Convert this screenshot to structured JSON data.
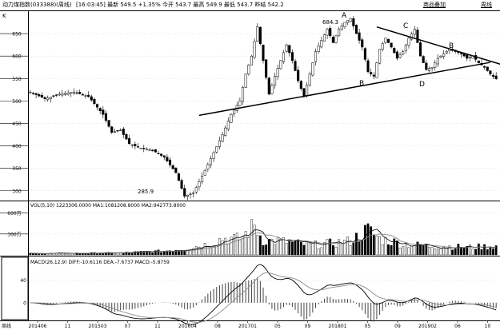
{
  "header": {
    "title": "动力煤指数(033388)(周线)",
    "info": "[16:03:45]  最新 549.5 +1.35%  今开 543.7  最高 549.9  最低 543.7  昨结 542.2",
    "btn_overlay": "商品叠加",
    "btn_period": "周线"
  },
  "main": {
    "corner_label": "K",
    "annotations": [
      {
        "text": "A"
      },
      {
        "text": "B"
      },
      {
        "text": "C"
      },
      {
        "text": "D"
      },
      {
        "text": "B"
      },
      {
        "text": "684.3"
      },
      {
        "text": "285.9"
      }
    ]
  },
  "vol_label": "VOL(5,10) 1223306.0000  MA1:1081208.8000  MA2:942773.8000",
  "macd_label": "MACD(26,12,9) DIFF:-10.6116  DEA:-7.6737  MACD:-5.8759",
  "x_axis_label": "周线",
  "chart_data": [
    {
      "type": "candlestick",
      "panel": "price",
      "ylim": [
        280,
        700
      ],
      "y_ticks": [
        300,
        350,
        400,
        450,
        500,
        550,
        600,
        650
      ],
      "close_anchors": [
        [
          0,
          520
        ],
        [
          5,
          505
        ],
        [
          10,
          515
        ],
        [
          15,
          520
        ],
        [
          20,
          510
        ],
        [
          25,
          470
        ],
        [
          28,
          430
        ],
        [
          31,
          435
        ],
        [
          34,
          405
        ],
        [
          38,
          395
        ],
        [
          42,
          390
        ],
        [
          46,
          375
        ],
        [
          50,
          340
        ],
        [
          53,
          288
        ],
        [
          56,
          295
        ],
        [
          60,
          345
        ],
        [
          63,
          385
        ],
        [
          66,
          425
        ],
        [
          69,
          470
        ],
        [
          72,
          500
        ],
        [
          74,
          560
        ],
        [
          76,
          600
        ],
        [
          78,
          665
        ],
        [
          80,
          590
        ],
        [
          82,
          515
        ],
        [
          84,
          555
        ],
        [
          86,
          590
        ],
        [
          88,
          625
        ],
        [
          90,
          590
        ],
        [
          92,
          545
        ],
        [
          94,
          510
        ],
        [
          96,
          560
        ],
        [
          98,
          610
        ],
        [
          100,
          635
        ],
        [
          102,
          660
        ],
        [
          104,
          630
        ],
        [
          106,
          660
        ],
        [
          108,
          675
        ],
        [
          110,
          684
        ],
        [
          112,
          650
        ],
        [
          114,
          620
        ],
        [
          116,
          565
        ],
        [
          118,
          555
        ],
        [
          120,
          615
        ],
        [
          122,
          640
        ],
        [
          124,
          620
        ],
        [
          126,
          595
        ],
        [
          128,
          610
        ],
        [
          130,
          640
        ],
        [
          132,
          660
        ],
        [
          134,
          600
        ],
        [
          136,
          570
        ],
        [
          138,
          575
        ],
        [
          140,
          595
        ],
        [
          142,
          605
        ],
        [
          144,
          615
        ],
        [
          146,
          610
        ],
        [
          148,
          605
        ],
        [
          150,
          595
        ],
        [
          152,
          600
        ],
        [
          154,
          585
        ],
        [
          156,
          575
        ],
        [
          158,
          560
        ],
        [
          160,
          549.5
        ]
      ],
      "trendlines": [
        {
          "from": [
            58,
            468
          ],
          "to": [
            158,
            586
          ]
        },
        {
          "from": [
            119,
            665
          ],
          "to": [
            165,
            575
          ]
        }
      ]
    },
    {
      "type": "bar",
      "panel": "volume",
      "ylabel": "VOL",
      "ylim": [
        0,
        700
      ],
      "y_ticks": [
        {
          "v": 300,
          "label": "300万"
        },
        {
          "v": 600,
          "label": "600万"
        }
      ],
      "volume_anchors": [
        [
          0,
          20
        ],
        [
          30,
          28
        ],
        [
          46,
          55
        ],
        [
          54,
          95
        ],
        [
          62,
          165
        ],
        [
          66,
          240
        ],
        [
          72,
          230
        ],
        [
          77,
          420
        ],
        [
          80,
          210
        ],
        [
          88,
          190
        ],
        [
          96,
          140
        ],
        [
          104,
          170
        ],
        [
          110,
          200
        ],
        [
          116,
          360
        ],
        [
          120,
          230
        ],
        [
          128,
          160
        ],
        [
          136,
          130
        ],
        [
          144,
          120
        ],
        [
          150,
          110
        ],
        [
          160,
          125
        ]
      ]
    },
    {
      "type": "bar",
      "panel": "macd",
      "series": [
        {
          "name": "DIFF"
        },
        {
          "name": "DEA"
        },
        {
          "name": "MACD"
        }
      ],
      "ylim": [
        -30,
        75
      ],
      "y_ticks": [
        0,
        40
      ],
      "x_tick_labels": [
        "201406",
        "11",
        "201503",
        "07",
        "11",
        "201604",
        "08",
        "201701",
        "05",
        "09",
        "201801",
        "05",
        "09",
        "201902",
        "06",
        "10"
      ]
    }
  ]
}
